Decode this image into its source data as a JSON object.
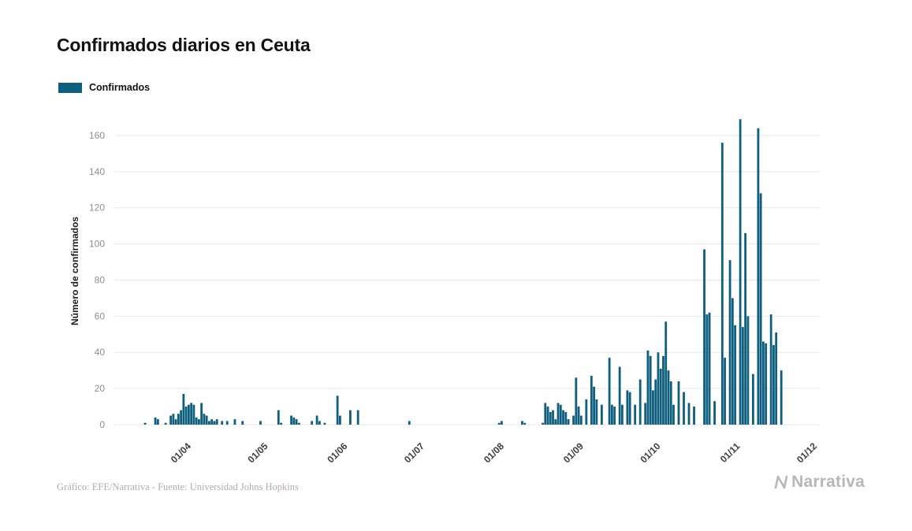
{
  "page": {
    "title": "Confirmados diarios en Ceuta",
    "footer": "Gráfico: EFE/Narrativa - Fuente: Universidad Johns Hopkins",
    "brand": "Narrativa"
  },
  "legend": {
    "label": "Confirmados",
    "color": "#0e5e7e"
  },
  "chart_data": {
    "type": "bar",
    "title": "Confirmados diarios en Ceuta",
    "xlabel": "",
    "ylabel": "Número de confirmados",
    "series_name": "Confirmados",
    "bar_color": "#0e5e7e",
    "grid": true,
    "legend_position": "top-left",
    "ylim": [
      0,
      170
    ],
    "y_ticks": [
      0,
      20,
      40,
      60,
      80,
      100,
      120,
      140,
      160
    ],
    "x_domain": [
      "2020-03-05",
      "2020-12-05"
    ],
    "x_ticks": [
      {
        "date": "2020-04-01",
        "label": "01/04"
      },
      {
        "date": "2020-05-01",
        "label": "01/05"
      },
      {
        "date": "2020-06-01",
        "label": "01/06"
      },
      {
        "date": "2020-07-01",
        "label": "01/07"
      },
      {
        "date": "2020-08-01",
        "label": "01/08"
      },
      {
        "date": "2020-09-01",
        "label": "01/09"
      },
      {
        "date": "2020-10-01",
        "label": "01/10"
      },
      {
        "date": "2020-11-01",
        "label": "01/11"
      },
      {
        "date": "2020-12-01",
        "label": "01/12"
      }
    ],
    "points": [
      [
        "2020-03-17",
        1
      ],
      [
        "2020-03-21",
        4
      ],
      [
        "2020-03-22",
        3
      ],
      [
        "2020-03-25",
        1
      ],
      [
        "2020-03-27",
        5
      ],
      [
        "2020-03-28",
        6
      ],
      [
        "2020-03-29",
        3
      ],
      [
        "2020-03-30",
        6
      ],
      [
        "2020-03-31",
        8
      ],
      [
        "2020-04-01",
        17
      ],
      [
        "2020-04-02",
        10
      ],
      [
        "2020-04-03",
        11
      ],
      [
        "2020-04-04",
        12
      ],
      [
        "2020-04-05",
        11
      ],
      [
        "2020-04-06",
        4
      ],
      [
        "2020-04-07",
        3
      ],
      [
        "2020-04-08",
        12
      ],
      [
        "2020-04-09",
        6
      ],
      [
        "2020-04-10",
        5
      ],
      [
        "2020-04-11",
        2
      ],
      [
        "2020-04-12",
        3
      ],
      [
        "2020-04-13",
        2
      ],
      [
        "2020-04-14",
        3
      ],
      [
        "2020-04-16",
        2
      ],
      [
        "2020-04-18",
        2
      ],
      [
        "2020-04-21",
        3
      ],
      [
        "2020-04-24",
        2
      ],
      [
        "2020-05-01",
        2
      ],
      [
        "2020-05-08",
        8
      ],
      [
        "2020-05-09",
        1
      ],
      [
        "2020-05-13",
        5
      ],
      [
        "2020-05-14",
        4
      ],
      [
        "2020-05-15",
        3
      ],
      [
        "2020-05-16",
        1
      ],
      [
        "2020-05-21",
        2
      ],
      [
        "2020-05-23",
        5
      ],
      [
        "2020-05-24",
        2
      ],
      [
        "2020-05-26",
        1
      ],
      [
        "2020-05-31",
        16
      ],
      [
        "2020-06-01",
        5
      ],
      [
        "2020-06-05",
        8
      ],
      [
        "2020-06-08",
        8
      ],
      [
        "2020-06-28",
        2
      ],
      [
        "2020-08-02",
        1
      ],
      [
        "2020-08-03",
        2
      ],
      [
        "2020-08-11",
        2
      ],
      [
        "2020-08-12",
        1
      ],
      [
        "2020-08-19",
        1
      ],
      [
        "2020-08-20",
        12
      ],
      [
        "2020-08-21",
        10
      ],
      [
        "2020-08-22",
        7
      ],
      [
        "2020-08-23",
        8
      ],
      [
        "2020-08-24",
        3
      ],
      [
        "2020-08-25",
        12
      ],
      [
        "2020-08-26",
        11
      ],
      [
        "2020-08-27",
        8
      ],
      [
        "2020-08-28",
        7
      ],
      [
        "2020-08-29",
        3
      ],
      [
        "2020-08-31",
        5
      ],
      [
        "2020-09-01",
        26
      ],
      [
        "2020-09-02",
        10
      ],
      [
        "2020-09-03",
        5
      ],
      [
        "2020-09-05",
        14
      ],
      [
        "2020-09-07",
        27
      ],
      [
        "2020-09-08",
        21
      ],
      [
        "2020-09-09",
        14
      ],
      [
        "2020-09-11",
        11
      ],
      [
        "2020-09-14",
        37
      ],
      [
        "2020-09-15",
        11
      ],
      [
        "2020-09-16",
        10
      ],
      [
        "2020-09-18",
        32
      ],
      [
        "2020-09-19",
        11
      ],
      [
        "2020-09-21",
        19
      ],
      [
        "2020-09-22",
        18
      ],
      [
        "2020-09-24",
        11
      ],
      [
        "2020-09-26",
        25
      ],
      [
        "2020-09-28",
        12
      ],
      [
        "2020-09-29",
        41
      ],
      [
        "2020-09-30",
        38
      ],
      [
        "2020-10-01",
        19
      ],
      [
        "2020-10-02",
        25
      ],
      [
        "2020-10-03",
        40
      ],
      [
        "2020-10-04",
        31
      ],
      [
        "2020-10-05",
        38
      ],
      [
        "2020-10-06",
        57
      ],
      [
        "2020-10-07",
        30
      ],
      [
        "2020-10-08",
        24
      ],
      [
        "2020-10-09",
        11
      ],
      [
        "2020-10-11",
        24
      ],
      [
        "2020-10-13",
        18
      ],
      [
        "2020-10-15",
        12
      ],
      [
        "2020-10-17",
        10
      ],
      [
        "2020-10-21",
        97
      ],
      [
        "2020-10-22",
        61
      ],
      [
        "2020-10-23",
        62
      ],
      [
        "2020-10-25",
        13
      ],
      [
        "2020-10-28",
        156
      ],
      [
        "2020-10-29",
        37
      ],
      [
        "2020-10-31",
        91
      ],
      [
        "2020-11-01",
        70
      ],
      [
        "2020-11-02",
        55
      ],
      [
        "2020-11-04",
        169
      ],
      [
        "2020-11-05",
        54
      ],
      [
        "2020-11-06",
        106
      ],
      [
        "2020-11-07",
        60
      ],
      [
        "2020-11-09",
        28
      ],
      [
        "2020-11-11",
        164
      ],
      [
        "2020-11-12",
        128
      ],
      [
        "2020-11-13",
        46
      ],
      [
        "2020-11-14",
        45
      ],
      [
        "2020-11-16",
        61
      ],
      [
        "2020-11-17",
        44
      ],
      [
        "2020-11-18",
        51
      ],
      [
        "2020-11-20",
        30
      ]
    ]
  }
}
